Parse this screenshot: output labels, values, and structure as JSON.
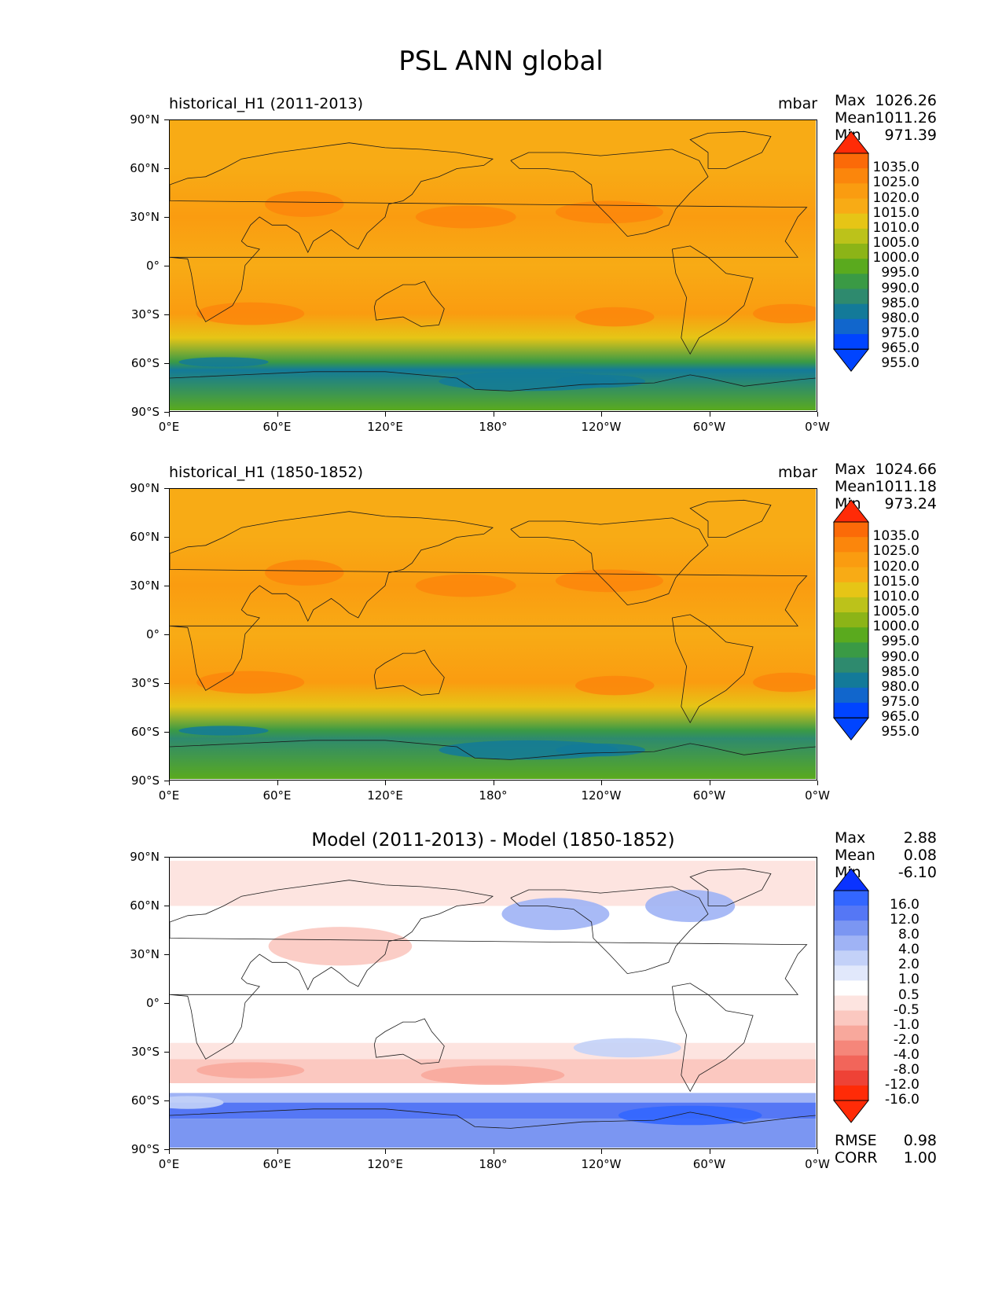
{
  "figure_title": "PSL ANN global",
  "colors": {
    "abs_levels": [
      "#0044ff",
      "#1166cc",
      "#137a99",
      "#2e8a6e",
      "#3a9a45",
      "#5aaa1e",
      "#8cb417",
      "#bcc21a",
      "#e6c516",
      "#f8ab15",
      "#fa9c10",
      "#fb860c",
      "#fb6a08",
      "#ff2b07"
    ],
    "diff_levels": [
      "#0a33ff",
      "#3366ff",
      "#5577f5",
      "#7b96f2",
      "#9fb3f5",
      "#c3d1f8",
      "#e1e8fb",
      "#ffffff",
      "#fde4e0",
      "#fbc8c0",
      "#f8a89c",
      "#f5867a",
      "#f2655a",
      "#ee4236",
      "#ff2b07"
    ]
  },
  "chart_data": [
    {
      "type": "heatmap",
      "title_left": "historical_H1 (2011-2013)",
      "title_right": "mbar",
      "stats": {
        "max_label": "Max",
        "max": "1026.26",
        "mean_label": "Mean",
        "mean": "1011.26",
        "min_label": "Min",
        "min": "971.39"
      },
      "colorbar_ticks": [
        "1035.0",
        "1025.0",
        "1020.0",
        "1015.0",
        "1010.0",
        "1005.0",
        "1000.0",
        "995.0",
        "990.0",
        "985.0",
        "980.0",
        "975.0",
        "965.0",
        "955.0"
      ],
      "yticks": [
        "90°N",
        "60°N",
        "30°N",
        "0°",
        "30°S",
        "60°S",
        "90°S"
      ],
      "xticks": [
        "0°E",
        "60°E",
        "120°E",
        "180°",
        "120°W",
        "60°W",
        "0°W"
      ],
      "xlim": [
        0,
        360
      ],
      "ylim": [
        -90,
        90
      ],
      "zonal_profile_mbar": [
        {
          "lat": 90,
          "v": 1013
        },
        {
          "lat": 60,
          "v": 1011
        },
        {
          "lat": 30,
          "v": 1016
        },
        {
          "lat": 0,
          "v": 1011
        },
        {
          "lat": -30,
          "v": 1017
        },
        {
          "lat": -45,
          "v": 1005
        },
        {
          "lat": -60,
          "v": 985
        },
        {
          "lat": -65,
          "v": 978
        },
        {
          "lat": -90,
          "v": 992
        }
      ]
    },
    {
      "type": "heatmap",
      "title_left": "historical_H1 (1850-1852)",
      "title_right": "mbar",
      "stats": {
        "max_label": "Max",
        "max": "1024.66",
        "mean_label": "Mean",
        "mean": "1011.18",
        "min_label": "Min",
        "min": "973.24"
      },
      "colorbar_ticks": [
        "1035.0",
        "1025.0",
        "1020.0",
        "1015.0",
        "1010.0",
        "1005.0",
        "1000.0",
        "995.0",
        "990.0",
        "985.0",
        "980.0",
        "975.0",
        "965.0",
        "955.0"
      ],
      "yticks": [
        "90°N",
        "60°N",
        "30°N",
        "0°",
        "30°S",
        "60°S",
        "90°S"
      ],
      "xticks": [
        "0°E",
        "60°E",
        "120°E",
        "180°",
        "120°W",
        "60°W",
        "0°W"
      ],
      "xlim": [
        0,
        360
      ],
      "ylim": [
        -90,
        90
      ],
      "zonal_profile_mbar": [
        {
          "lat": 90,
          "v": 1013
        },
        {
          "lat": 60,
          "v": 1011
        },
        {
          "lat": 30,
          "v": 1016
        },
        {
          "lat": 0,
          "v": 1011
        },
        {
          "lat": -30,
          "v": 1016
        },
        {
          "lat": -45,
          "v": 1005
        },
        {
          "lat": -60,
          "v": 986
        },
        {
          "lat": -65,
          "v": 980
        },
        {
          "lat": -90,
          "v": 994
        }
      ]
    },
    {
      "type": "heatmap",
      "title_center": "Model (2011-2013) - Model (1850-1852)",
      "stats": {
        "max_label": "Max",
        "max": "2.88",
        "mean_label": "Mean",
        "mean": "0.08",
        "min_label": "Min",
        "min": "-6.10"
      },
      "colorbar_ticks": [
        "16.0",
        "12.0",
        "8.0",
        "4.0",
        "2.0",
        "1.0",
        "0.5",
        "-0.5",
        "-1.0",
        "-2.0",
        "-4.0",
        "-8.0",
        "-12.0",
        "-16.0"
      ],
      "yticks": [
        "90°N",
        "60°N",
        "30°N",
        "0°",
        "30°S",
        "60°S",
        "90°S"
      ],
      "xticks": [
        "0°E",
        "60°E",
        "120°E",
        "180°",
        "120°W",
        "60°W",
        "0°W"
      ],
      "xlim": [
        0,
        360
      ],
      "ylim": [
        -90,
        90
      ],
      "extra_stats": {
        "rmse_label": "RMSE",
        "rmse": "0.98",
        "corr_label": "CORR",
        "corr": "1.00"
      }
    }
  ]
}
